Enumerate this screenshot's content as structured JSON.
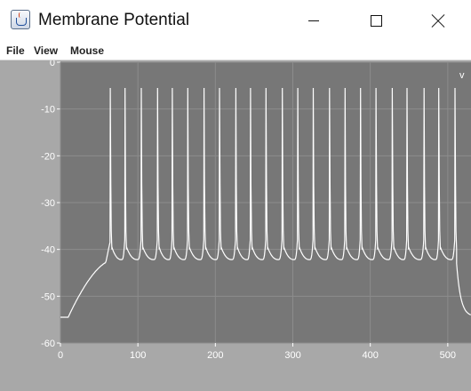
{
  "window": {
    "title": "Membrane Potential",
    "icon": "java-cup-icon"
  },
  "menu": {
    "items": [
      "File",
      "View",
      "Mouse"
    ]
  },
  "chart_data": {
    "type": "line",
    "title": "",
    "xlabel": "",
    "ylabel": "",
    "corner_label": "v",
    "xlim": [
      0,
      530
    ],
    "ylim": [
      -60,
      0
    ],
    "x_ticks": [
      0,
      100,
      200,
      300,
      400,
      500
    ],
    "y_ticks": [
      0,
      -10,
      -20,
      -30,
      -40,
      -50,
      -60
    ],
    "grid": true,
    "baseline_mV": -54.5,
    "rise_start_ms": 10,
    "spike_peak_mV": -5.5,
    "trough_mV": -42,
    "spike_times_ms": [
      64,
      83,
      104,
      125,
      144,
      164,
      185,
      205,
      226,
      245,
      265,
      286,
      306,
      326,
      347,
      367,
      387,
      407,
      428,
      447,
      469,
      488,
      509
    ],
    "final_decay_to_mV": -54,
    "colors": {
      "plot_background": "#777777",
      "margin_background": "#a8a8a8",
      "trace": "#ffffff",
      "grid": "#8c8c8c"
    }
  }
}
